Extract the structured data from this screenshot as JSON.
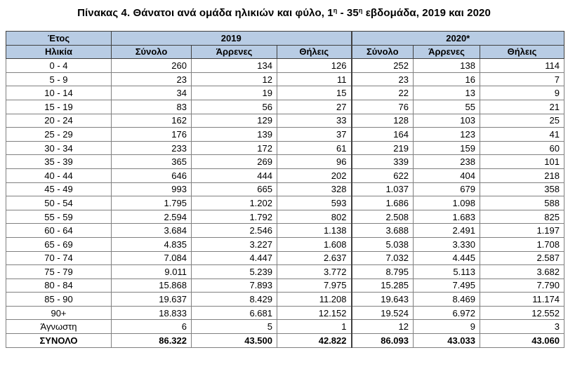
{
  "title": {
    "prefix": "Πίνακας 4. Θάνατοι ανά ομάδα ηλικιών και φύλο, 1",
    "sup1": "η",
    "middle": " - 35",
    "sup2": "η",
    "suffix": " εβδομάδα, 2019 και 2020"
  },
  "header": {
    "year_label": "Έτος",
    "age_label": "Ηλικία",
    "year_2019": "2019",
    "year_2020": "2020*",
    "col_total": "Σύνολο",
    "col_male": "Άρρενες",
    "col_female": "Θήλεις"
  },
  "rows": [
    {
      "age": "0 - 4",
      "v": [
        "260",
        "134",
        "126",
        "252",
        "138",
        "114"
      ]
    },
    {
      "age": "5 - 9",
      "v": [
        "23",
        "12",
        "11",
        "23",
        "16",
        "7"
      ]
    },
    {
      "age": "10 - 14",
      "v": [
        "34",
        "19",
        "15",
        "22",
        "13",
        "9"
      ]
    },
    {
      "age": "15 - 19",
      "v": [
        "83",
        "56",
        "27",
        "76",
        "55",
        "21"
      ]
    },
    {
      "age": "20 - 24",
      "v": [
        "162",
        "129",
        "33",
        "128",
        "103",
        "25"
      ]
    },
    {
      "age": "25 - 29",
      "v": [
        "176",
        "139",
        "37",
        "164",
        "123",
        "41"
      ]
    },
    {
      "age": "30 - 34",
      "v": [
        "233",
        "172",
        "61",
        "219",
        "159",
        "60"
      ]
    },
    {
      "age": "35 - 39",
      "v": [
        "365",
        "269",
        "96",
        "339",
        "238",
        "101"
      ]
    },
    {
      "age": "40 - 44",
      "v": [
        "646",
        "444",
        "202",
        "622",
        "404",
        "218"
      ]
    },
    {
      "age": "45 - 49",
      "v": [
        "993",
        "665",
        "328",
        "1.037",
        "679",
        "358"
      ]
    },
    {
      "age": "50 - 54",
      "v": [
        "1.795",
        "1.202",
        "593",
        "1.686",
        "1.098",
        "588"
      ]
    },
    {
      "age": "55 - 59",
      "v": [
        "2.594",
        "1.792",
        "802",
        "2.508",
        "1.683",
        "825"
      ]
    },
    {
      "age": "60 - 64",
      "v": [
        "3.684",
        "2.546",
        "1.138",
        "3.688",
        "2.491",
        "1.197"
      ]
    },
    {
      "age": "65 - 69",
      "v": [
        "4.835",
        "3.227",
        "1.608",
        "5.038",
        "3.330",
        "1.708"
      ]
    },
    {
      "age": "70 - 74",
      "v": [
        "7.084",
        "4.447",
        "2.637",
        "7.032",
        "4.445",
        "2.587"
      ]
    },
    {
      "age": "75 - 79",
      "v": [
        "9.011",
        "5.239",
        "3.772",
        "8.795",
        "5.113",
        "3.682"
      ]
    },
    {
      "age": "80 - 84",
      "v": [
        "15.868",
        "7.893",
        "7.975",
        "15.285",
        "7.495",
        "7.790"
      ]
    },
    {
      "age": "85 - 90",
      "v": [
        "19.637",
        "8.429",
        "11.208",
        "19.643",
        "8.469",
        "11.174"
      ]
    },
    {
      "age": "90+",
      "v": [
        "18.833",
        "6.681",
        "12.152",
        "19.524",
        "6.972",
        "12.552"
      ]
    },
    {
      "age": "Άγνωστη",
      "v": [
        "6",
        "5",
        "1",
        "12",
        "9",
        "3"
      ]
    }
  ],
  "total": {
    "age": "ΣΥΝΟΛΟ",
    "v": [
      "86.322",
      "43.500",
      "42.822",
      "86.093",
      "43.033",
      "43.060"
    ]
  }
}
